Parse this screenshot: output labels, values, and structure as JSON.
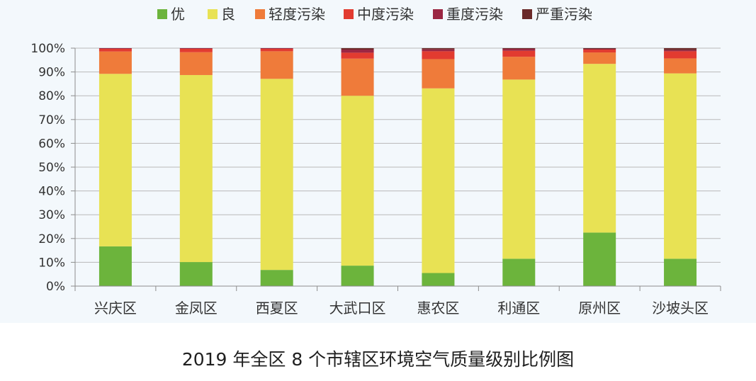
{
  "caption": "2019 年全区 8 个市辖区环境空气质量级别比例图",
  "chart_data": {
    "type": "bar",
    "stacked": true,
    "percent": true,
    "title": "",
    "xlabel": "",
    "ylabel": "",
    "ylim": [
      0,
      100
    ],
    "yticks": [
      "0%",
      "10%",
      "20%",
      "30%",
      "40%",
      "50%",
      "60%",
      "70%",
      "80%",
      "90%",
      "100%"
    ],
    "grid": true,
    "legend_position": "top",
    "categories": [
      "兴庆区",
      "金凤区",
      "西夏区",
      "大武口区",
      "惠农区",
      "利通区",
      "原州区",
      "沙坡头区"
    ],
    "series": [
      {
        "name": "优",
        "color": "#6cb43c",
        "values": [
          16.7,
          10.1,
          6.8,
          8.6,
          5.5,
          11.5,
          22.5,
          11.5
        ]
      },
      {
        "name": "良",
        "color": "#e8e254",
        "values": [
          72.5,
          78.6,
          80.3,
          71.4,
          77.6,
          75.3,
          70.9,
          77.9
        ]
      },
      {
        "name": "轻度污染",
        "color": "#ef7b3a",
        "values": [
          9.4,
          9.6,
          11.6,
          15.6,
          12.3,
          9.6,
          4.8,
          6.3
        ]
      },
      {
        "name": "中度污染",
        "color": "#e23b30",
        "values": [
          1.1,
          1.4,
          1.0,
          2.5,
          3.3,
          2.5,
          1.2,
          3.0
        ]
      },
      {
        "name": "重度污染",
        "color": "#9b2743",
        "values": [
          0.3,
          0.3,
          0.3,
          1.3,
          0.8,
          0.8,
          0.3,
          0.5
        ]
      },
      {
        "name": "严重污染",
        "color": "#6b2a2a",
        "values": [
          0.0,
          0.0,
          0.0,
          0.6,
          0.5,
          0.3,
          0.3,
          0.8
        ]
      }
    ]
  }
}
